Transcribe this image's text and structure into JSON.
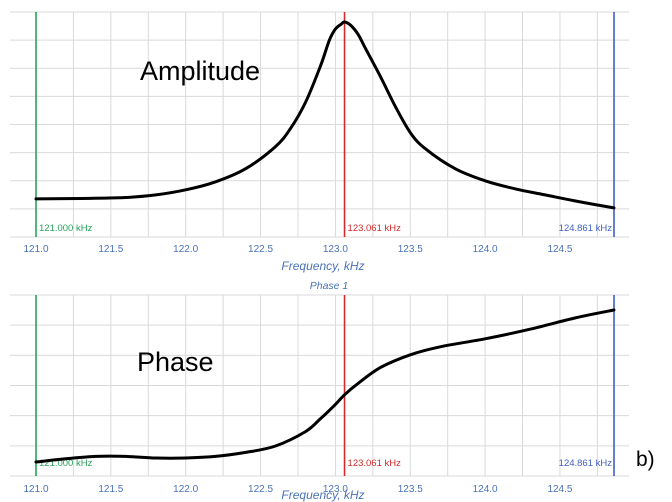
{
  "colors": {
    "grid": "#d9d9d9",
    "curve": "#000000",
    "axis_text": "#4a72b8",
    "marker_start": "#27a35a",
    "marker_center": "#d62a2a",
    "marker_end": "#3f5fc4"
  },
  "figure_label": "b)",
  "chart_data": [
    {
      "type": "line",
      "title": "",
      "panel_label": "Amplitude",
      "xlabel": "Frequency, kHz",
      "x_ticks": [
        "121.0",
        "121.5",
        "122.0",
        "122.5",
        "123.0",
        "123.5",
        "124.0",
        "124.5"
      ],
      "xlim": [
        121.0,
        124.861
      ],
      "ylim": [
        0,
        1
      ],
      "grid": true,
      "markers": [
        {
          "x": 121.0,
          "label": "121.000 kHz",
          "color": "#27a35a"
        },
        {
          "x": 123.061,
          "label": "123.061 kHz",
          "color": "#d62a2a"
        },
        {
          "x": 124.861,
          "label": "124.861 kHz",
          "color": "#3f5fc4"
        }
      ],
      "series": [
        {
          "x": [
            121.0,
            121.3,
            121.6,
            121.8,
            122.0,
            122.2,
            122.4,
            122.6,
            122.7,
            122.8,
            122.9,
            122.96,
            123.0,
            123.04,
            123.061,
            123.1,
            123.15,
            123.2,
            123.3,
            123.4,
            123.5,
            123.6,
            123.8,
            124.0,
            124.2,
            124.4,
            124.6,
            124.861
          ],
          "y": [
            0.12,
            0.122,
            0.127,
            0.14,
            0.165,
            0.205,
            0.27,
            0.38,
            0.47,
            0.6,
            0.78,
            0.91,
            0.965,
            0.99,
            1.0,
            0.985,
            0.94,
            0.87,
            0.73,
            0.58,
            0.45,
            0.37,
            0.27,
            0.21,
            0.17,
            0.14,
            0.11,
            0.075
          ]
        }
      ]
    },
    {
      "type": "line",
      "title": "Phase 1",
      "panel_label": "Phase",
      "xlabel": "Frequency, kHz",
      "x_ticks": [
        "121.0",
        "121.5",
        "122.0",
        "122.5",
        "123.0",
        "123.5",
        "124.0",
        "124.5"
      ],
      "xlim": [
        121.0,
        124.861
      ],
      "ylim": [
        0,
        1
      ],
      "grid": true,
      "markers": [
        {
          "x": 121.0,
          "label": "121.000 kHz",
          "color": "#27a35a"
        },
        {
          "x": 123.061,
          "label": "123.061 kHz",
          "color": "#d62a2a"
        },
        {
          "x": 124.861,
          "label": "124.861 kHz",
          "color": "#3f5fc4"
        }
      ],
      "series": [
        {
          "x": [
            121.0,
            121.2,
            121.4,
            121.6,
            121.8,
            122.0,
            122.2,
            122.4,
            122.6,
            122.8,
            122.9,
            123.0,
            123.061,
            123.15,
            123.3,
            123.5,
            123.7,
            124.0,
            124.3,
            124.6,
            124.861
          ],
          "y": [
            0.0,
            0.02,
            0.035,
            0.035,
            0.025,
            0.025,
            0.035,
            0.06,
            0.1,
            0.19,
            0.27,
            0.36,
            0.42,
            0.49,
            0.59,
            0.67,
            0.72,
            0.77,
            0.83,
            0.9,
            0.95
          ]
        }
      ]
    }
  ]
}
